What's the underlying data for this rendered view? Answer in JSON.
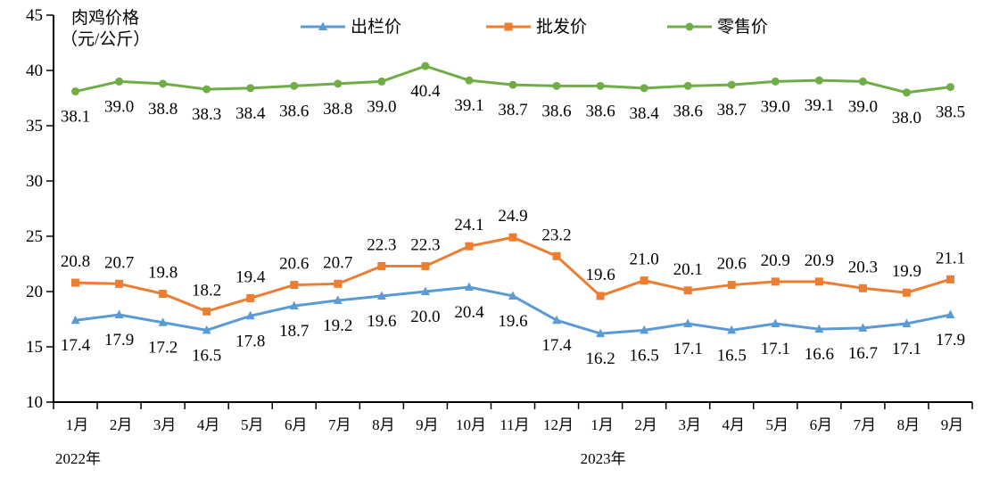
{
  "chart_data": {
    "type": "line",
    "ylabel_line1": "肉鸡价格",
    "ylabel_line2": "（元/公斤）",
    "ylim": [
      10,
      45
    ],
    "yticks": [
      10,
      15,
      20,
      25,
      30,
      35,
      40,
      45
    ],
    "categories": [
      "1月",
      "2月",
      "3月",
      "4月",
      "5月",
      "6月",
      "7月",
      "8月",
      "9月",
      "10月",
      "11月",
      "12月",
      "1月",
      "2月",
      "3月",
      "4月",
      "5月",
      "6月",
      "7月",
      "8月",
      "9月"
    ],
    "year_labels": [
      {
        "label": "2022年",
        "start_index": 0
      },
      {
        "label": "2023年",
        "start_index": 12
      }
    ],
    "legend_position": "top",
    "grid": false,
    "series": [
      {
        "name": "出栏价",
        "color": "#5b9bd5",
        "marker": "triangle",
        "values": [
          17.4,
          17.9,
          17.2,
          16.5,
          17.8,
          18.7,
          19.2,
          19.6,
          20.0,
          20.4,
          19.6,
          17.4,
          16.2,
          16.5,
          17.1,
          16.5,
          17.1,
          16.6,
          16.7,
          17.1,
          17.9
        ]
      },
      {
        "name": "批发价",
        "color": "#ed7d31",
        "marker": "square",
        "values": [
          20.8,
          20.7,
          19.8,
          18.2,
          19.4,
          20.6,
          20.7,
          22.3,
          22.3,
          24.1,
          24.9,
          23.2,
          19.6,
          21.0,
          20.1,
          20.6,
          20.9,
          20.9,
          20.3,
          19.9,
          21.1
        ]
      },
      {
        "name": "零售价",
        "color": "#70ad47",
        "marker": "circle",
        "values": [
          38.1,
          39.0,
          38.8,
          38.3,
          38.4,
          38.6,
          38.8,
          39.0,
          40.4,
          39.1,
          38.7,
          38.6,
          38.6,
          38.4,
          38.6,
          38.7,
          39.0,
          39.1,
          39.0,
          38.0,
          38.5
        ]
      }
    ]
  }
}
